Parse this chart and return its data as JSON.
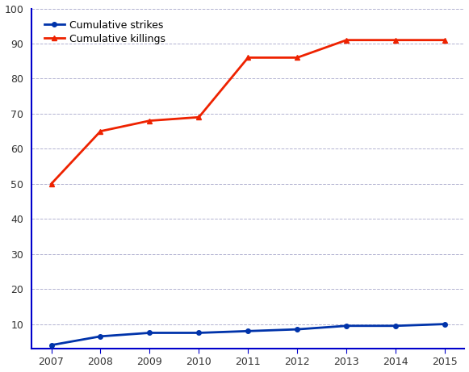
{
  "years": [
    2007,
    2008,
    2009,
    2010,
    2011,
    2012,
    2013,
    2014,
    2015
  ],
  "strikes": [
    4,
    6.5,
    7.5,
    7.5,
    8,
    8.5,
    9.5,
    9.5,
    10
  ],
  "killings": [
    50,
    65,
    68,
    69,
    86,
    86,
    91,
    91,
    91
  ],
  "strikes_color": "#0033aa",
  "killings_color": "#ee2200",
  "strikes_label": "Cumulative strikes",
  "killings_label": "Cumulative killings",
  "ylim_min": 3,
  "ylim_max": 100,
  "yticks": [
    10,
    20,
    30,
    40,
    50,
    60,
    70,
    80,
    90,
    100
  ],
  "background_color": "#ffffff",
  "grid_color": "#aaaacc",
  "spine_color": "#0000cc",
  "axis_label_color": "#333399"
}
